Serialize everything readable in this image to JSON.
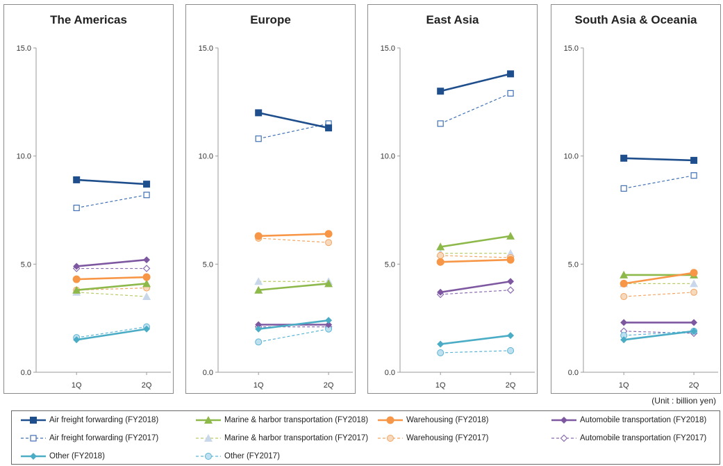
{
  "unit_label": "(Unit : billion yen)",
  "series_styles": [
    {
      "key": "air18",
      "color": "#1F4E8C",
      "marker": "square",
      "dashed": false
    },
    {
      "key": "air17",
      "color": "#3F6FB4",
      "marker": "square-open",
      "dashed": true
    },
    {
      "key": "marine18",
      "color": "#8DB84A",
      "marker": "triangle",
      "dashed": false
    },
    {
      "key": "marine17",
      "color": "#B8CC66",
      "marker": "triangle-light",
      "dashed": true
    },
    {
      "key": "ware18",
      "color": "#F79646",
      "marker": "circle",
      "dashed": false
    },
    {
      "key": "ware17",
      "color": "#F4A460",
      "marker": "circle-light",
      "dashed": true
    },
    {
      "key": "auto18",
      "color": "#7E57A1",
      "marker": "diamond",
      "dashed": false
    },
    {
      "key": "auto17",
      "color": "#8C6BB1",
      "marker": "diamond-open",
      "dashed": true
    },
    {
      "key": "other18",
      "color": "#4BACC6",
      "marker": "diamond",
      "dashed": false
    },
    {
      "key": "other17",
      "color": "#5AB4D6",
      "marker": "circle-light",
      "dashed": true
    }
  ],
  "legend": [
    {
      "key": "air18",
      "label": "Air freight forwarding (FY2018)"
    },
    {
      "key": "marine18",
      "label": "Marine & harbor transportation (FY2018)"
    },
    {
      "key": "ware18",
      "label": "Warehousing (FY2018)"
    },
    {
      "key": "auto18",
      "label": "Automobile transportation (FY2018)"
    },
    {
      "key": "air17",
      "label": "Air freight forwarding (FY2017)"
    },
    {
      "key": "marine17",
      "label": "Marine & harbor transportation (FY2017)"
    },
    {
      "key": "ware17",
      "label": "Warehousing (FY2017)"
    },
    {
      "key": "auto17",
      "label": "Automobile transportation (FY2017)"
    },
    {
      "key": "other18",
      "label": "Other (FY2018)"
    },
    {
      "key": "other17",
      "label": "Other (FY2017)"
    }
  ],
  "chart_data": [
    {
      "type": "line",
      "title": "The Americas",
      "categories": [
        "1Q",
        "2Q"
      ],
      "ylim": [
        0,
        15
      ],
      "yticks": [
        "0.0",
        "5.0",
        "10.0",
        "15.0"
      ],
      "series": [
        {
          "name": "Air freight forwarding (FY2018)",
          "key": "air18",
          "values": [
            8.9,
            8.7
          ]
        },
        {
          "name": "Air freight forwarding (FY2017)",
          "key": "air17",
          "values": [
            7.6,
            8.2
          ]
        },
        {
          "name": "Marine & harbor transportation (FY2018)",
          "key": "marine18",
          "values": [
            3.8,
            4.1
          ]
        },
        {
          "name": "Marine & harbor transportation (FY2017)",
          "key": "marine17",
          "values": [
            3.7,
            3.5
          ]
        },
        {
          "name": "Warehousing (FY2018)",
          "key": "ware18",
          "values": [
            4.3,
            4.4
          ]
        },
        {
          "name": "Warehousing (FY2017)",
          "key": "ware17",
          "values": [
            3.8,
            3.9
          ]
        },
        {
          "name": "Automobile transportation (FY2018)",
          "key": "auto18",
          "values": [
            4.9,
            5.2
          ]
        },
        {
          "name": "Automobile transportation (FY2017)",
          "key": "auto17",
          "values": [
            4.8,
            4.8
          ]
        },
        {
          "name": "Other (FY2018)",
          "key": "other18",
          "values": [
            1.5,
            2.0
          ]
        },
        {
          "name": "Other (FY2017)",
          "key": "other17",
          "values": [
            1.6,
            2.1
          ]
        }
      ]
    },
    {
      "type": "line",
      "title": "Europe",
      "categories": [
        "1Q",
        "2Q"
      ],
      "ylim": [
        0,
        15
      ],
      "yticks": [
        "0.0",
        "5.0",
        "10.0",
        "15.0"
      ],
      "series": [
        {
          "name": "Air freight forwarding (FY2018)",
          "key": "air18",
          "values": [
            12.0,
            11.3
          ]
        },
        {
          "name": "Air freight forwarding (FY2017)",
          "key": "air17",
          "values": [
            10.8,
            11.5
          ]
        },
        {
          "name": "Marine & harbor transportation (FY2018)",
          "key": "marine18",
          "values": [
            3.8,
            4.1
          ]
        },
        {
          "name": "Marine & harbor transportation (FY2017)",
          "key": "marine17",
          "values": [
            4.2,
            4.2
          ]
        },
        {
          "name": "Warehousing (FY2018)",
          "key": "ware18",
          "values": [
            6.3,
            6.4
          ]
        },
        {
          "name": "Warehousing (FY2017)",
          "key": "ware17",
          "values": [
            6.2,
            6.0
          ]
        },
        {
          "name": "Automobile transportation (FY2018)",
          "key": "auto18",
          "values": [
            2.2,
            2.2
          ]
        },
        {
          "name": "Automobile transportation (FY2017)",
          "key": "auto17",
          "values": [
            2.1,
            2.1
          ]
        },
        {
          "name": "Other (FY2018)",
          "key": "other18",
          "values": [
            2.0,
            2.4
          ]
        },
        {
          "name": "Other (FY2017)",
          "key": "other17",
          "values": [
            1.4,
            2.0
          ]
        }
      ]
    },
    {
      "type": "line",
      "title": "East Asia",
      "categories": [
        "1Q",
        "2Q"
      ],
      "ylim": [
        0,
        15
      ],
      "yticks": [
        "0.0",
        "5.0",
        "10.0",
        "15.0"
      ],
      "series": [
        {
          "name": "Air freight forwarding (FY2018)",
          "key": "air18",
          "values": [
            13.0,
            13.8
          ]
        },
        {
          "name": "Air freight forwarding (FY2017)",
          "key": "air17",
          "values": [
            11.5,
            12.9
          ]
        },
        {
          "name": "Marine & harbor transportation (FY2018)",
          "key": "marine18",
          "values": [
            5.8,
            6.3
          ]
        },
        {
          "name": "Marine & harbor transportation (FY2017)",
          "key": "marine17",
          "values": [
            5.5,
            5.5
          ]
        },
        {
          "name": "Warehousing (FY2018)",
          "key": "ware18",
          "values": [
            5.1,
            5.2
          ]
        },
        {
          "name": "Warehousing (FY2017)",
          "key": "ware17",
          "values": [
            5.4,
            5.3
          ]
        },
        {
          "name": "Automobile transportation (FY2018)",
          "key": "auto18",
          "values": [
            3.7,
            4.2
          ]
        },
        {
          "name": "Automobile transportation (FY2017)",
          "key": "auto17",
          "values": [
            3.6,
            3.8
          ]
        },
        {
          "name": "Other (FY2018)",
          "key": "other18",
          "values": [
            1.3,
            1.7
          ]
        },
        {
          "name": "Other (FY2017)",
          "key": "other17",
          "values": [
            0.9,
            1.0
          ]
        }
      ]
    },
    {
      "type": "line",
      "title": "South Asia & Oceania",
      "categories": [
        "1Q",
        "2Q"
      ],
      "ylim": [
        0,
        15
      ],
      "yticks": [
        "0.0",
        "5.0",
        "10.0",
        "15.0"
      ],
      "series": [
        {
          "name": "Air freight forwarding (FY2018)",
          "key": "air18",
          "values": [
            9.9,
            9.8
          ]
        },
        {
          "name": "Air freight forwarding (FY2017)",
          "key": "air17",
          "values": [
            8.5,
            9.1
          ]
        },
        {
          "name": "Marine & harbor transportation (FY2018)",
          "key": "marine18",
          "values": [
            4.5,
            4.5
          ]
        },
        {
          "name": "Marine & harbor transportation (FY2017)",
          "key": "marine17",
          "values": [
            4.1,
            4.1
          ]
        },
        {
          "name": "Warehousing (FY2018)",
          "key": "ware18",
          "values": [
            4.1,
            4.6
          ]
        },
        {
          "name": "Warehousing (FY2017)",
          "key": "ware17",
          "values": [
            3.5,
            3.7
          ]
        },
        {
          "name": "Automobile transportation (FY2018)",
          "key": "auto18",
          "values": [
            2.3,
            2.3
          ]
        },
        {
          "name": "Automobile transportation (FY2017)",
          "key": "auto17",
          "values": [
            1.9,
            1.8
          ]
        },
        {
          "name": "Other (FY2018)",
          "key": "other18",
          "values": [
            1.5,
            1.9
          ]
        },
        {
          "name": "Other (FY2017)",
          "key": "other17",
          "values": [
            1.7,
            1.9
          ]
        }
      ]
    }
  ]
}
